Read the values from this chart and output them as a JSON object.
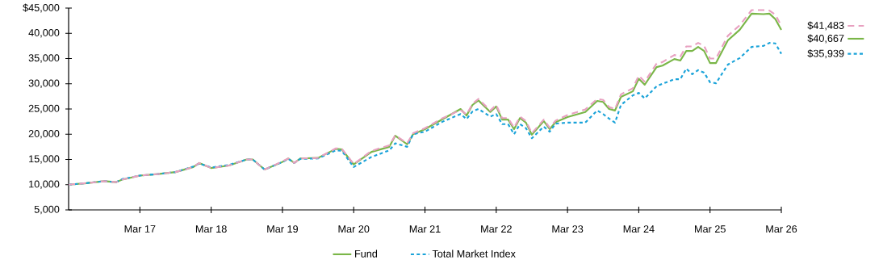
{
  "chart_data": {
    "type": "line",
    "x": [
      "2016-03",
      "2016-06",
      "2016-09",
      "2016-11",
      "2016-12",
      "2017-03",
      "2017-06",
      "2017-09",
      "2017-12",
      "2018-01",
      "2018-03",
      "2018-06",
      "2018-09",
      "2018-10",
      "2018-11",
      "2018-12",
      "2019-03",
      "2019-04",
      "2019-05",
      "2019-06",
      "2019-09",
      "2019-12",
      "2020-01",
      "2020-03",
      "2020-06",
      "2020-09",
      "2020-10",
      "2020-12",
      "2021-01",
      "2021-03",
      "2021-06",
      "2021-09",
      "2021-10",
      "2021-11",
      "2021-12",
      "2022-02",
      "2022-03",
      "2022-04",
      "2022-05",
      "2022-06",
      "2022-07",
      "2022-08",
      "2022-09",
      "2022-11",
      "2022-12",
      "2023-01",
      "2023-03",
      "2023-06",
      "2023-08",
      "2023-09",
      "2023-10",
      "2023-11",
      "2023-12",
      "2024-02",
      "2024-03",
      "2024-04",
      "2024-06",
      "2024-07",
      "2024-09",
      "2024-10",
      "2024-11",
      "2024-12",
      "2025-01",
      "2025-02",
      "2025-03",
      "2025-04",
      "2025-06",
      "2025-08",
      "2025-10",
      "2025-12",
      "2026-01",
      "2026-02",
      "2026-03"
    ],
    "series": [
      {
        "name": "Fund",
        "color": "#7ab648",
        "line_style": "solid",
        "values": [
          10000,
          10300,
          10700,
          10500,
          11000,
          11800,
          12100,
          12500,
          13500,
          14300,
          13300,
          13800,
          15000,
          15000,
          14000,
          13000,
          14500,
          15200,
          14300,
          15200,
          15300,
          17100,
          17000,
          14000,
          16500,
          17500,
          19700,
          18000,
          20000,
          21000,
          23000,
          25000,
          23700,
          25800,
          26700,
          24400,
          25500,
          22900,
          22900,
          21000,
          23200,
          22300,
          19900,
          22600,
          21000,
          22400,
          23400,
          24400,
          26600,
          26400,
          25000,
          24700,
          27400,
          28500,
          31000,
          29800,
          33300,
          33600,
          34900,
          34600,
          36500,
          36500,
          37300,
          36500,
          34100,
          34100,
          38600,
          40700,
          43900,
          43800,
          43900,
          42800,
          40667
        ]
      },
      {
        "name": "Total Market Index",
        "color": "#1aa3d9",
        "line_style": "dotted",
        "values": [
          10000,
          10300,
          10700,
          10500,
          11100,
          11800,
          12100,
          12500,
          13600,
          14200,
          13400,
          13900,
          15000,
          15000,
          14000,
          13000,
          14500,
          15100,
          14300,
          15100,
          15200,
          16800,
          16700,
          13500,
          15500,
          16800,
          18200,
          17500,
          20000,
          20500,
          22500,
          24000,
          23000,
          24500,
          25000,
          23500,
          24000,
          22000,
          22000,
          20000,
          22000,
          21200,
          19200,
          21500,
          20500,
          22100,
          22300,
          22300,
          24700,
          24000,
          23100,
          22300,
          25800,
          27700,
          28200,
          27100,
          29500,
          30000,
          30900,
          30900,
          33000,
          31900,
          32700,
          32200,
          30300,
          30100,
          33800,
          35100,
          37300,
          37500,
          38100,
          38000,
          35939
        ]
      },
      {
        "color": "#e8a0c0",
        "line_style": "dashed",
        "values": [
          10000,
          10300,
          10700,
          10500,
          11000,
          11800,
          12100,
          12500,
          13500,
          14300,
          13300,
          13800,
          15000,
          15000,
          14000,
          13000,
          14600,
          15200,
          14300,
          15200,
          15300,
          17200,
          17100,
          14100,
          16700,
          17800,
          19800,
          18200,
          20200,
          21200,
          23200,
          24800,
          23900,
          26000,
          27000,
          24700,
          25800,
          23200,
          23200,
          21300,
          23500,
          22600,
          20200,
          22900,
          21300,
          22700,
          23800,
          24900,
          27000,
          26800,
          25400,
          25000,
          27900,
          29100,
          31600,
          30400,
          34000,
          34300,
          35700,
          35400,
          37400,
          37400,
          38100,
          37500,
          35000,
          35000,
          39500,
          41600,
          44600,
          44600,
          44500,
          43700,
          41483
        ]
      }
    ],
    "xlim": [
      "2016-03",
      "2026-03"
    ],
    "xticks": [
      {
        "value": "2017-03",
        "label": "Mar 17"
      },
      {
        "value": "2018-03",
        "label": "Mar 18"
      },
      {
        "value": "2019-03",
        "label": "Mar 19"
      },
      {
        "value": "2020-03",
        "label": "Mar 20"
      },
      {
        "value": "2021-03",
        "label": "Mar 21"
      },
      {
        "value": "2022-03",
        "label": "Mar 22"
      },
      {
        "value": "2023-03",
        "label": "Mar 23"
      },
      {
        "value": "2024-03",
        "label": "Mar 24"
      },
      {
        "value": "2025-03",
        "label": "Mar 25"
      },
      {
        "value": "2026-03",
        "label": "Mar 26"
      }
    ],
    "ylim": [
      5000,
      45000
    ],
    "yticks": [
      {
        "value": 5000,
        "label": "5,000"
      },
      {
        "value": 10000,
        "label": "10,000"
      },
      {
        "value": 15000,
        "label": "15,000"
      },
      {
        "value": 20000,
        "label": "20,000"
      },
      {
        "value": 25000,
        "label": "25,000"
      },
      {
        "value": 30000,
        "label": "30,000"
      },
      {
        "value": 35000,
        "label": "35,000"
      },
      {
        "value": 40000,
        "label": "40,000"
      },
      {
        "value": 45000,
        "label": "$45,000"
      }
    ],
    "annotations": [
      {
        "text": "$41,483",
        "x": "2026-03",
        "y": 41483
      },
      {
        "text": "$40,667",
        "x": "2026-03",
        "y": 40667
      },
      {
        "text": "$35,939",
        "x": "2026-03",
        "y": 35939
      }
    ],
    "grid": false,
    "legend": "bottom"
  }
}
